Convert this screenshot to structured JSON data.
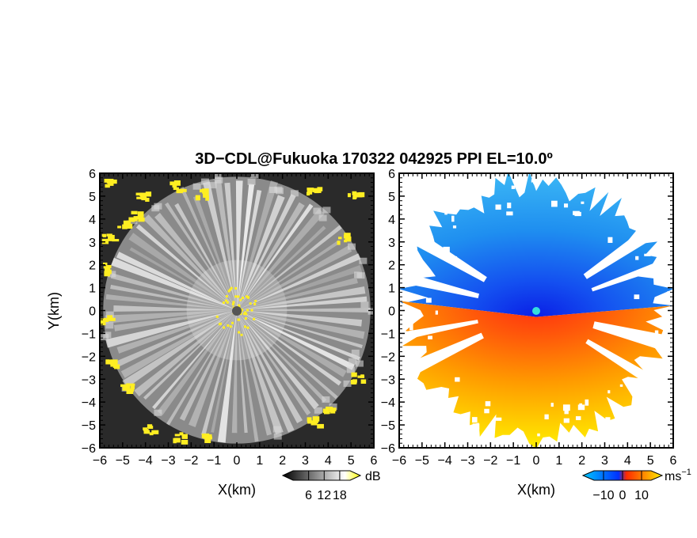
{
  "chart_data": {
    "title": "3D−CDL@Fukuoka 170322 042925 PPI EL=10.0º",
    "panels": [
      {
        "type": "heatmap",
        "quantity": "reflectivity",
        "xlabel": "X(km)",
        "ylabel": "Y(km)",
        "xlim": [
          -6,
          6
        ],
        "ylim": [
          -6,
          6
        ],
        "xticks": [
          "−6",
          "−5",
          "−4",
          "−3",
          "−2",
          "−1",
          "0",
          "1",
          "2",
          "3",
          "4",
          "5",
          "6"
        ],
        "yticks": [
          "6",
          "5",
          "4",
          "3",
          "2",
          "1",
          "0",
          "−1",
          "−2",
          "−3",
          "−4",
          "−5",
          "−6"
        ],
        "colorbar": {
          "unit": "dB",
          "range": [
            0,
            22
          ],
          "ticks": [
            "6",
            "12",
            "18"
          ],
          "colors": [
            "#000000",
            "#ffffff",
            "#ffff00"
          ]
        },
        "colors": {
          "background": "#2a2a2a",
          "rays": "#e6e6e6",
          "echo": "#ffee22",
          "center": "#555555"
        }
      },
      {
        "type": "heatmap",
        "quantity": "doppler velocity",
        "xlabel": "X(km)",
        "xlim": [
          -6,
          6
        ],
        "ylim": [
          -6,
          6
        ],
        "xticks": [
          "−6",
          "−5",
          "−4",
          "−3",
          "−2",
          "−1",
          "0",
          "1",
          "2",
          "3",
          "4",
          "5",
          "6"
        ],
        "yticks": [
          "6",
          "5",
          "4",
          "3",
          "2",
          "1",
          "0",
          "−1",
          "−2",
          "−3",
          "−4",
          "−5",
          "−6"
        ],
        "colorbar": {
          "unit": "ms",
          "unit_exponent": "−1",
          "range": [
            -15,
            15
          ],
          "ticks": [
            "−10",
            "0",
            "10"
          ],
          "colors": [
            "#00b8ff",
            "#0033ff",
            "#ff3300",
            "#ffee00"
          ]
        },
        "colors": {
          "approaching_far": "#22aaf0",
          "approaching_near": "#0a2ae8",
          "receding_near": "#ff3a1a",
          "receding_far": "#ffd400",
          "center": "#33dddd"
        }
      }
    ]
  }
}
